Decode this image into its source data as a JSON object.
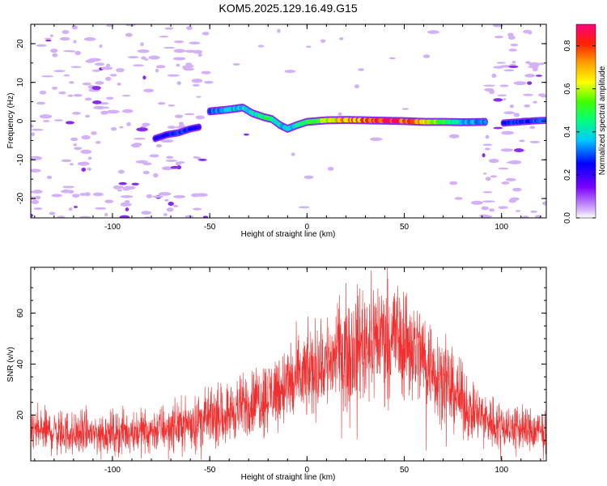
{
  "title": "KOM5.2025.129.16.49.G15",
  "chart_data": [
    {
      "type": "heatmap",
      "xlabel": "Height of straight line (km)",
      "ylabel": "Frequency (Hz)",
      "xlim": [
        -142,
        123
      ],
      "ylim": [
        -25,
        25
      ],
      "xticks": [
        -100,
        -50,
        0,
        50,
        100
      ],
      "yticks": [
        -20,
        -10,
        0,
        10,
        20
      ],
      "colorbar": {
        "label": "Normalized spectral amplitude",
        "range": [
          0.0,
          0.9
        ],
        "ticks": [
          0.0,
          0.2,
          0.4,
          0.6,
          0.8
        ]
      },
      "ridge": {
        "x": [
          -50,
          -40,
          -33,
          -28,
          -22,
          -18,
          -14,
          -10,
          -5,
          0,
          10,
          20,
          30,
          40,
          50,
          60,
          70,
          80,
          92
        ],
        "y": [
          2.5,
          3.0,
          3.5,
          2.0,
          1.0,
          0.5,
          -1.0,
          -2.0,
          -1.0,
          -0.2,
          0.2,
          0.3,
          0.2,
          0.1,
          0.0,
          -0.2,
          -0.2,
          -0.3,
          -0.2
        ],
        "amplitude": [
          0.3,
          0.35,
          0.4,
          0.4,
          0.45,
          0.45,
          0.4,
          0.35,
          0.4,
          0.45,
          0.6,
          0.7,
          0.75,
          0.85,
          0.8,
          0.65,
          0.5,
          0.35,
          0.3
        ]
      },
      "ridge_left": {
        "x": [
          -78,
          -72,
          -66,
          -60,
          -55
        ],
        "y": [
          -4.5,
          -3.5,
          -3.0,
          -2.0,
          -1.5
        ],
        "amplitude": [
          0.22,
          0.25,
          0.28,
          0.26,
          0.24
        ]
      },
      "ridge_right": {
        "x": [
          101,
          106,
          112,
          118,
          123
        ],
        "y": [
          -0.5,
          -0.3,
          -0.1,
          0.1,
          0.2
        ],
        "amplitude": [
          0.25,
          0.26,
          0.27,
          0.28,
          0.28
        ]
      }
    },
    {
      "type": "line",
      "xlabel": "Height of straight line (km)",
      "ylabel": "SNR (v/v)",
      "xlim": [
        -142,
        123
      ],
      "ylim": [
        2,
        78
      ],
      "xticks": [
        -100,
        -50,
        0,
        50,
        100
      ],
      "yticks": [
        20,
        40,
        60
      ],
      "color": "#f03030",
      "trend": {
        "x": [
          -142,
          -120,
          -100,
          -80,
          -60,
          -40,
          -20,
          0,
          20,
          35,
          45,
          55,
          70,
          85,
          100,
          123
        ],
        "y": [
          14,
          13,
          13,
          14,
          17,
          21,
          28,
          36,
          46,
          51,
          52,
          47,
          34,
          21,
          16,
          13
        ]
      }
    }
  ]
}
